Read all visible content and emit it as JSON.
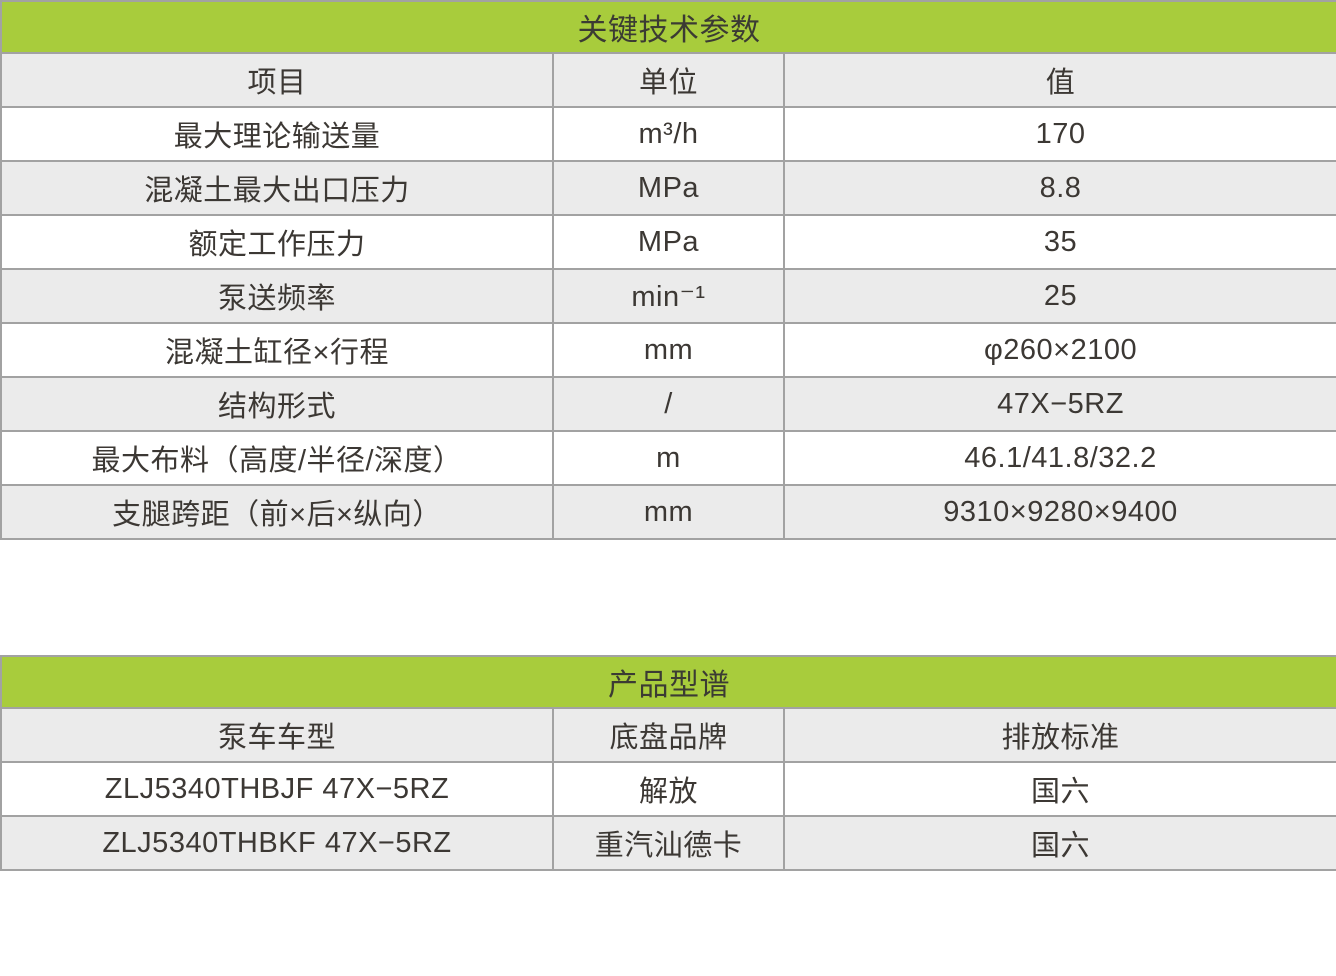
{
  "colors": {
    "header_green": "#a8cc3c",
    "row_alt_gray": "#ebebeb",
    "border_gray": "#a2a2a2",
    "text_dark": "#3c3834"
  },
  "key_parameters": {
    "title": "关键技术参数",
    "columns": [
      "项目",
      "单位",
      "值"
    ],
    "rows": [
      [
        "最大理论输送量",
        "m³/h",
        "170"
      ],
      [
        "混凝土最大出口压力",
        "MPa",
        "8.8"
      ],
      [
        "额定工作压力",
        "MPa",
        "35"
      ],
      [
        "泵送频率",
        "min⁻¹",
        "25"
      ],
      [
        "混凝土缸径×行程",
        "mm",
        "φ260×2100"
      ],
      [
        "结构形式",
        "/",
        "47X−5RZ"
      ],
      [
        "最大布料（高度/半径/深度）",
        "m",
        "46.1/41.8/32.2"
      ],
      [
        "支腿跨距（前×后×纵向）",
        "mm",
        "9310×9280×9400"
      ]
    ]
  },
  "product_models": {
    "title": "产品型谱",
    "columns": [
      "泵车车型",
      "底盘品牌",
      "排放标准"
    ],
    "rows": [
      [
        "ZLJ5340THBJF 47X−5RZ",
        "解放",
        "国六"
      ],
      [
        "ZLJ5340THBKF 47X−5RZ",
        "重汽汕德卡",
        "国六"
      ]
    ]
  }
}
